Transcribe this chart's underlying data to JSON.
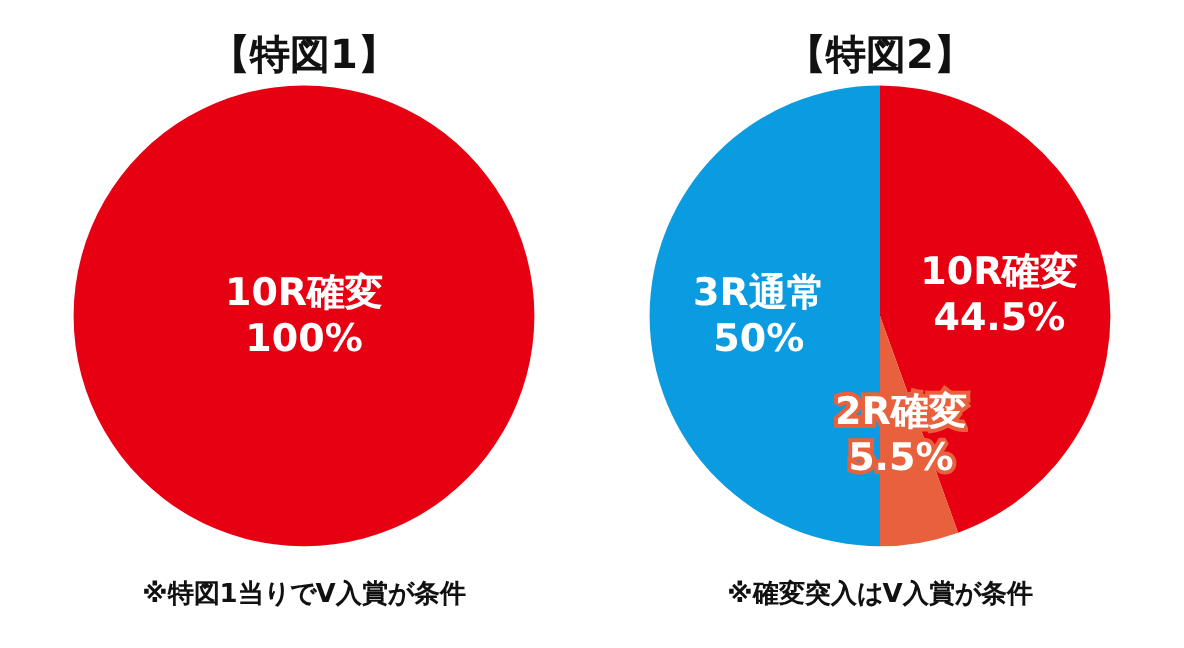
{
  "chart_data": [
    {
      "type": "pie",
      "title": "【特図1】",
      "categories": [
        "10R確変"
      ],
      "values": [
        100
      ],
      "colors": [
        "#e60012"
      ],
      "value_labels": [
        "100%"
      ],
      "annotations": [
        "※特図1当りでV入賞が条件"
      ]
    },
    {
      "type": "pie",
      "title": "【特図2】",
      "categories": [
        "10R確変",
        "2R確変",
        "3R通常"
      ],
      "values": [
        44.5,
        5.5,
        50
      ],
      "colors": [
        "#e60012",
        "#e8603c",
        "#0b9be0"
      ],
      "value_labels": [
        "44.5%",
        "5.5%",
        "50%"
      ],
      "annotations": [
        "※確変突入はV入賞が条件"
      ]
    }
  ]
}
